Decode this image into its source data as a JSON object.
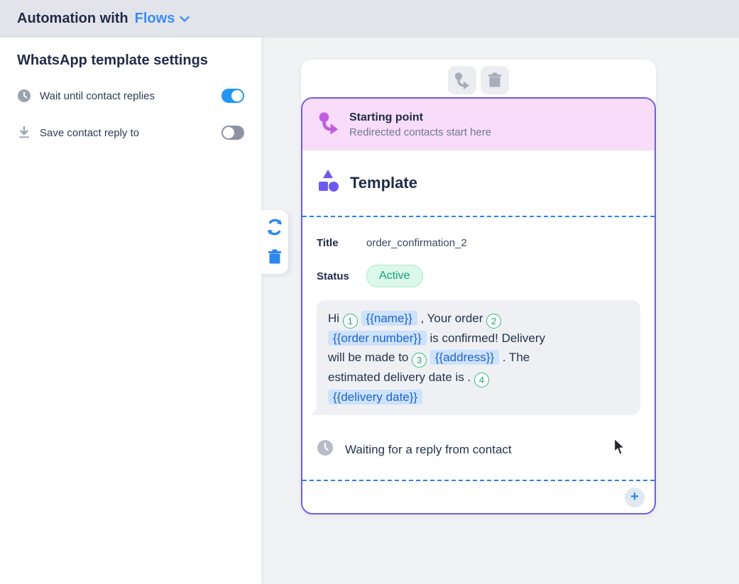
{
  "header": {
    "title_prefix": "Automation with",
    "title_dropdown": "Flows"
  },
  "sidebar": {
    "heading": "WhatsApp template settings",
    "options": [
      {
        "icon": "clock-icon",
        "label": "Wait until contact replies",
        "enabled": true
      },
      {
        "icon": "download-icon",
        "label": "Save contact reply to",
        "enabled": false
      }
    ]
  },
  "side_toolbar": {
    "icons": [
      "refresh-icon",
      "trash-icon"
    ]
  },
  "node_toolbar": {
    "icons": [
      "redirect-icon",
      "trash-icon"
    ]
  },
  "card": {
    "starting_point": {
      "title": "Starting point",
      "subtitle": "Redirected contacts start here"
    },
    "section_title": "Template",
    "fields": {
      "title_label": "Title",
      "title_value": "order_confirmation_2",
      "status_label": "Status",
      "status_value": "Active"
    },
    "message": {
      "segments": [
        {
          "t": "text",
          "v": "Hi"
        },
        {
          "t": "num",
          "v": "1"
        },
        {
          "t": "chip",
          "v": "{{name}}"
        },
        {
          "t": "text",
          "v": ", Your order"
        },
        {
          "t": "num",
          "v": "2"
        },
        {
          "t": "br"
        },
        {
          "t": "chip",
          "v": "{{order number}}"
        },
        {
          "t": "text",
          "v": "is confirmed! Delivery"
        },
        {
          "t": "br"
        },
        {
          "t": "text",
          "v": "will be made to"
        },
        {
          "t": "num",
          "v": "3"
        },
        {
          "t": "chip",
          "v": "{{address}}"
        },
        {
          "t": "text",
          "v": ". The"
        },
        {
          "t": "br"
        },
        {
          "t": "text",
          "v": "estimated delivery date is ."
        },
        {
          "t": "num",
          "v": "4"
        },
        {
          "t": "br"
        },
        {
          "t": "chip",
          "v": "{{delivery date}}"
        }
      ]
    },
    "waiting_text": "Waiting for a reply from contact",
    "add_button_label": "+"
  },
  "colors": {
    "accent_blue": "#2b86ee",
    "flows_blue": "#3d8bf8",
    "purple_border": "#6e5ce8",
    "template_purple": "#6a5af0",
    "starting_pink_bg": "#f8dcfa",
    "starting_icon_magenta": "#bf5dde",
    "dashed_blue": "#2f80ed",
    "badge_green_text": "#13a273",
    "badge_green_bg": "#dcf8eb",
    "chip_blue_bg": "#cde2fb",
    "chip_blue_text": "#2064d4",
    "num_circle_green": "#2cbd7e",
    "toggle_on": "#2196f3",
    "toggle_off": "#8d93a2"
  }
}
